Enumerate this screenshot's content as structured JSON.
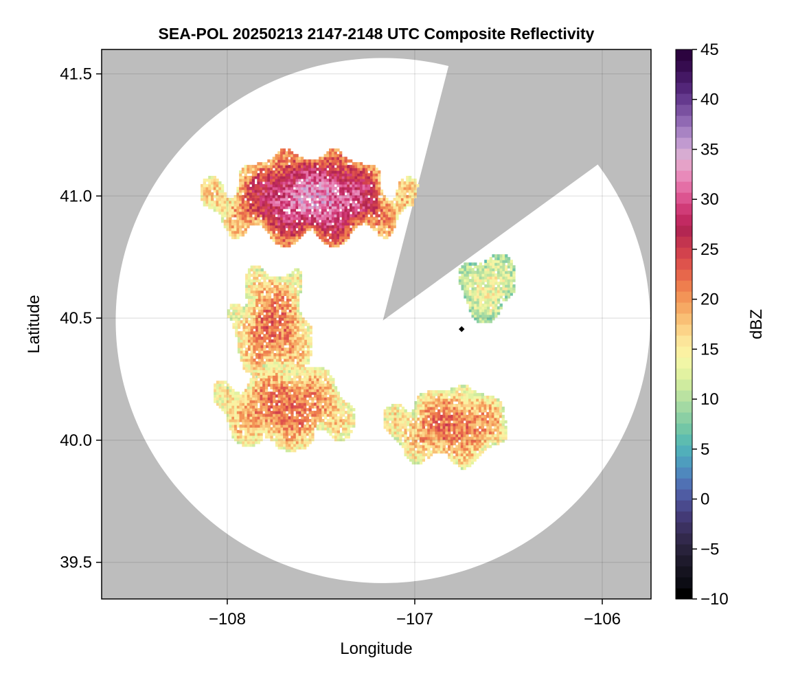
{
  "chart_data": {
    "type": "heatmap",
    "title": "SEA-POL 20250213 2147-2148 UTC Composite Reflectivity",
    "xlabel": "Longitude",
    "ylabel": "Latitude",
    "xlim": [
      -108.67,
      -105.74
    ],
    "ylim": [
      39.35,
      41.6
    ],
    "xticks": [
      -108,
      -107,
      -106
    ],
    "xtick_labels": [
      "−108",
      "−107",
      "−106"
    ],
    "yticks": [
      39.5,
      40.0,
      40.5,
      41.0,
      41.5
    ],
    "ytick_labels": [
      "39.5",
      "40.0",
      "40.5",
      "41.0",
      "41.5"
    ],
    "grid": true,
    "background_color": "#bdbdbd",
    "radar": {
      "center_lon": -107.17,
      "center_lat": 40.49,
      "coverage_edge_lat_south": 39.38,
      "coverage_edge_lat_north": 41.53,
      "coverage_edge_lon_west": -108.62,
      "coverage_edge_lon_east": -105.77,
      "blocked_sector": {
        "edge_west": [
          -106.83,
          41.52
        ],
        "edge_east": [
          -106.06,
          41.12
        ]
      }
    },
    "colorbar": {
      "label": "dBZ",
      "vmin": -10,
      "vmax": 45,
      "ticks": [
        -10,
        -5,
        0,
        5,
        10,
        15,
        20,
        25,
        30,
        35,
        40,
        45
      ],
      "tick_labels": [
        "−10",
        "−5",
        "0",
        "5",
        "10",
        "15",
        "20",
        "25",
        "30",
        "35",
        "40",
        "45"
      ],
      "colormap": "Spectral_r",
      "colors": [
        "#000000",
        "#0c0c14",
        "#15131f",
        "#1e1a2c",
        "#28223b",
        "#32294c",
        "#3b3160",
        "#433a76",
        "#4a4a8d",
        "#4f5ca3",
        "#5071b4",
        "#4f88bd",
        "#4e9dbe",
        "#51afba",
        "#5dbcb0",
        "#73c6a6",
        "#8bcfa4",
        "#a3d9a3",
        "#bae2a1",
        "#cfeb9f",
        "#e2f2a1",
        "#f1f6a6",
        "#fbf1a2",
        "#fce59a",
        "#fcd388",
        "#f9bf75",
        "#f6a964",
        "#f39457",
        "#ee7e4e",
        "#e7674b",
        "#de534c",
        "#d2424d",
        "#c3344f",
        "#b32652",
        "#c22a62",
        "#d03b77",
        "#dc5490",
        "#e46fa6",
        "#e88aba",
        "#e5a2c8",
        "#d7acd2",
        "#c19ad0",
        "#a883c3",
        "#9069b3",
        "#7a51a0",
        "#653a8e",
        "#532679",
        "#441864",
        "#360c4f",
        "#2c043f"
      ]
    },
    "echo_regions": [
      {
        "name": "northern band",
        "lon_range": [
          -108.17,
          -106.97
        ],
        "lat_range": [
          40.78,
          41.19
        ],
        "peak_dbz": 30
      },
      {
        "name": "western cell",
        "lon_range": [
          -108.0,
          -107.52
        ],
        "lat_range": [
          40.2,
          40.73
        ],
        "peak_dbz": 22
      },
      {
        "name": "southwest cluster",
        "lon_range": [
          -108.1,
          -107.28
        ],
        "lat_range": [
          39.93,
          40.33
        ],
        "peak_dbz": 22
      },
      {
        "name": "southeast cluster",
        "lon_range": [
          -107.18,
          -106.45
        ],
        "lat_range": [
          39.88,
          40.23
        ],
        "peak_dbz": 22
      },
      {
        "name": "northeast cell",
        "lon_range": [
          -106.78,
          -106.45
        ],
        "lat_range": [
          40.47,
          40.78
        ],
        "peak_dbz": 14
      }
    ]
  }
}
